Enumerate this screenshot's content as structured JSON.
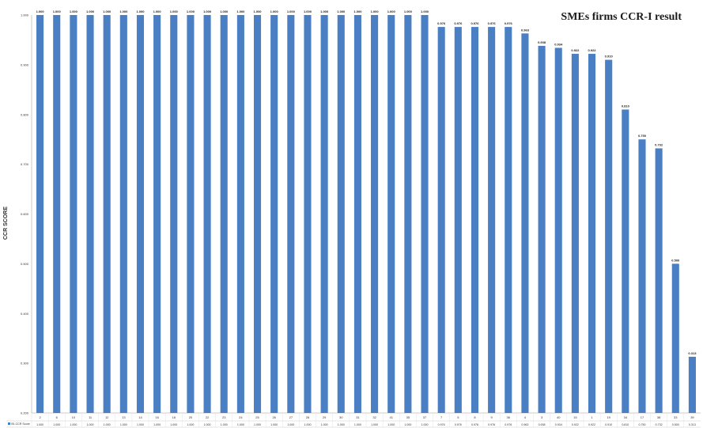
{
  "chart_data": {
    "type": "bar",
    "title": "SMEs firms CCR-I  result",
    "ylabel": "CCR SCORE",
    "xlabel": "",
    "ylim": [
      0.2,
      1.0
    ],
    "yticks": [
      "0.200",
      "0.300",
      "0.400",
      "0.500",
      "0.600",
      "0.700",
      "0.800",
      "0.900",
      "1.000"
    ],
    "series_name": "ISI-CCR Score",
    "color": "#4a7fc4",
    "categories": [
      "2",
      "6",
      "10",
      "11",
      "12",
      "13",
      "14",
      "16",
      "18",
      "20",
      "22",
      "23",
      "24",
      "25",
      "26",
      "27",
      "28",
      "29",
      "30",
      "31",
      "32",
      "41",
      "35",
      "37",
      "7",
      "5",
      "8",
      "9",
      "36",
      "4",
      "3",
      "40",
      "15",
      "1",
      "19",
      "34",
      "17",
      "38",
      "33",
      "39"
    ],
    "values": [
      1.0,
      1.0,
      1.0,
      1.0,
      1.0,
      1.0,
      1.0,
      1.0,
      1.0,
      1.0,
      1.0,
      1.0,
      1.0,
      1.0,
      1.0,
      1.0,
      1.0,
      1.0,
      1.0,
      1.0,
      1.0,
      1.0,
      1.0,
      1.0,
      0.976,
      0.976,
      0.976,
      0.976,
      0.976,
      0.963,
      0.938,
      0.934,
      0.922,
      0.922,
      0.91,
      0.81,
      0.75,
      0.732,
      0.5,
      0.313
    ],
    "labels": [
      "1.000",
      "1.000",
      "1.000",
      "1.000",
      "1.000",
      "1.000",
      "1.000",
      "1.000",
      "1.000",
      "1.000",
      "1.000",
      "1.000",
      "1.000",
      "1.000",
      "1.000",
      "1.000",
      "1.000",
      "1.000",
      "1.000",
      "1.000",
      "1.000",
      "1.000",
      "1.000",
      "1.000",
      "0.976",
      "0.976",
      "0.976",
      "0.976",
      "0.976",
      "0.963",
      "0.938",
      "0.934",
      "0.922",
      "0.922",
      "0.910",
      "0.810",
      "0.750",
      "0.732",
      "0.500",
      "0.313"
    ],
    "grid": false,
    "data_table": true
  }
}
